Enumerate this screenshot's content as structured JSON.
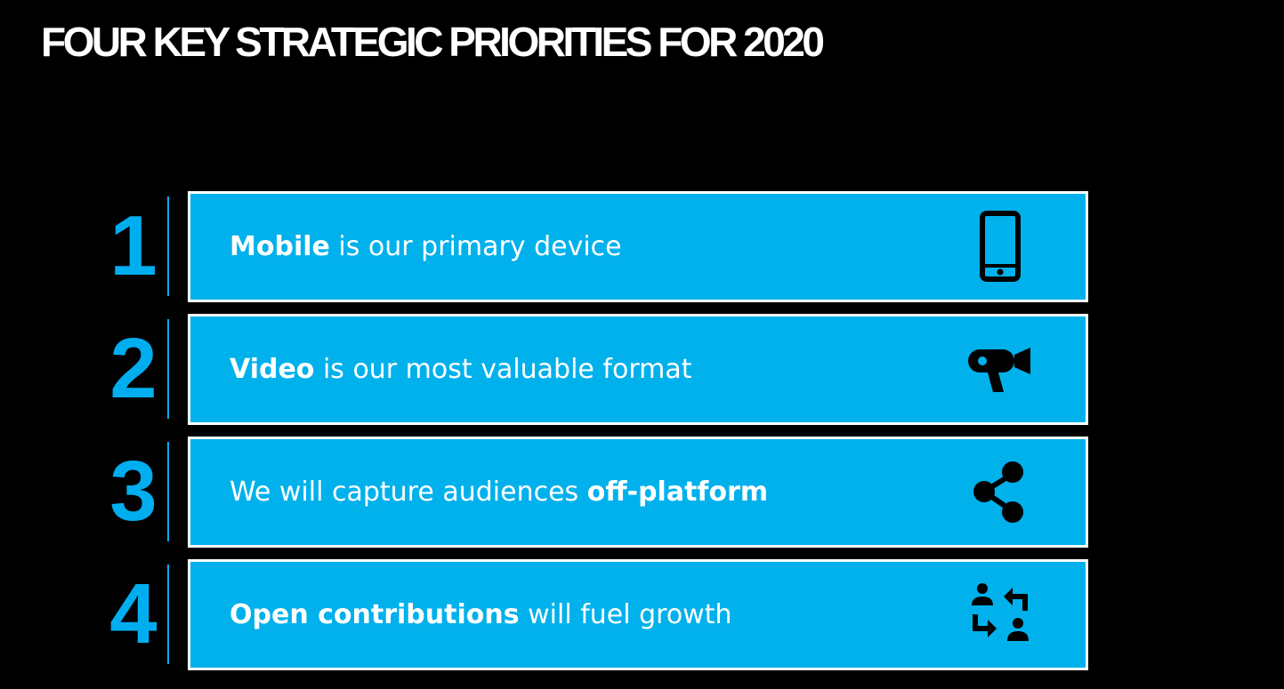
{
  "slide": {
    "title": "FOUR KEY STRATEGIC PRIORITIES FOR 2020"
  },
  "priorities": [
    {
      "number": "1",
      "bold": "Mobile",
      "text": " is our primary device",
      "icon": "mobile-phone-icon"
    },
    {
      "number": "2",
      "bold": "Video",
      "text": " is our most valuable format",
      "icon": "video-camera-icon"
    },
    {
      "number": "3",
      "prefix": "We will capture audiences ",
      "bold": "off-platform",
      "icon": "share-icon"
    },
    {
      "number": "4",
      "bold": "Open contributions",
      "text": " will fuel growth",
      "icon": "user-exchange-icon"
    }
  ],
  "colors": {
    "background": "#000000",
    "accent": "#00aeef",
    "box": "#00b1ec",
    "text": "#ffffff",
    "icon": "#000000"
  }
}
